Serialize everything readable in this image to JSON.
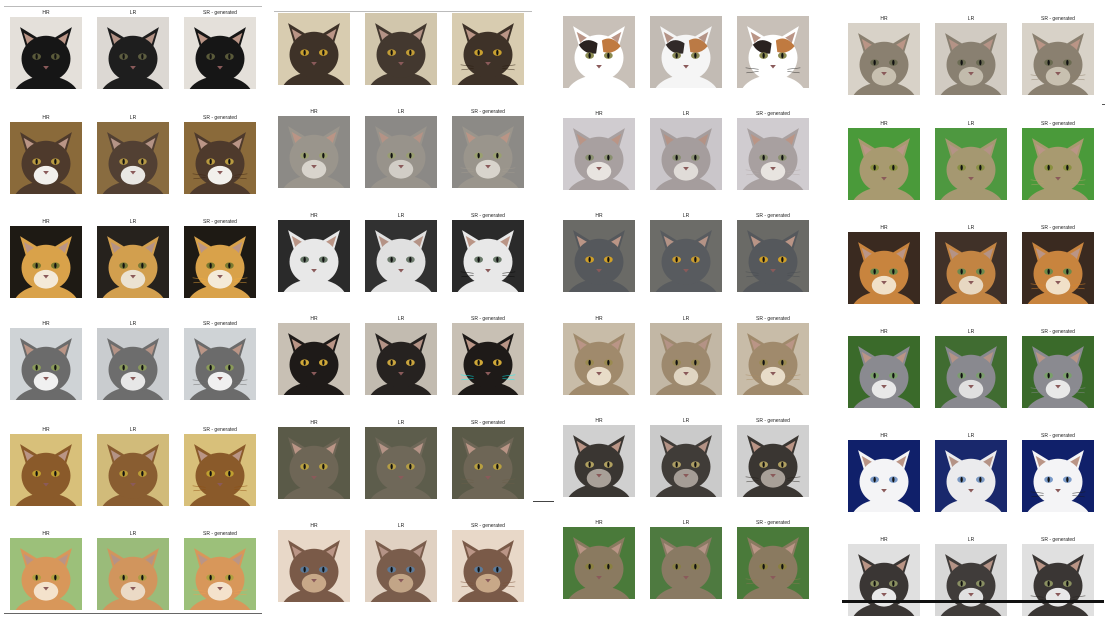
{
  "labels": {
    "hr": "HR",
    "lr": "LR",
    "sr": "SR - generated"
  },
  "panels": [
    {
      "name": "panel-1",
      "rows": [
        {
          "bg": "#e4e0da",
          "cat": "#161616",
          "eye": "#5a5a3a",
          "show_labels": true
        },
        {
          "bg": "#8a6a3a",
          "cat": "#4e3a2c",
          "eye": "#b89a40",
          "muzzle": "#f2f0ec",
          "show_labels": true
        },
        {
          "bg": "#1e1a14",
          "cat": "#d9a24a",
          "eye": "#7a7a30",
          "muzzle": "#f4ead8",
          "show_labels": true
        },
        {
          "bg": "#cfd3d6",
          "cat": "#6b6b6b",
          "eye": "#8a9a5a",
          "muzzle": "#f0f0f0",
          "show_labels": true
        },
        {
          "bg": "#d8c07a",
          "cat": "#8a5a2a",
          "eye": "#c0a030",
          "show_labels": true
        },
        {
          "bg": "#9cc07a",
          "cat": "#d8975a",
          "eye": "#b0a040",
          "muzzle": "#f4e2cc",
          "show_labels": true
        }
      ]
    },
    {
      "name": "panel-2",
      "rows": [
        {
          "bg": "#d8ccb0",
          "cat": "#3e3228",
          "eye": "#c8a030",
          "show_labels": false
        },
        {
          "bg": "#8c8a86",
          "cat": "#9a958c",
          "eye": "#9aa070",
          "muzzle": "#d8d4cc",
          "show_labels": true
        },
        {
          "bg": "#2a2a2a",
          "cat": "#e8e8e8",
          "eye": "#6a7a6a",
          "show_labels": true
        },
        {
          "bg": "#c8c0b4",
          "cat": "#1e1a18",
          "eye": "#d0a838",
          "show_labels": true
        },
        {
          "bg": "#5a5a48",
          "cat": "#6e6656",
          "eye": "#b8a040",
          "show_labels": true
        },
        {
          "bg": "#e8d8c8",
          "cat": "#7a5a48",
          "eye": "#5a7a9a",
          "muzzle": "#c8a888",
          "show_labels": true
        }
      ]
    },
    {
      "name": "panel-3",
      "rows": [
        {
          "bg": "#c8c0b8",
          "cat": "#ffffff",
          "eye": "#8a8a50",
          "patch": "#2a2220",
          "show_labels": false
        },
        {
          "bg": "#d0ccd0",
          "cat": "#a8a0a0",
          "eye": "#8a9070",
          "muzzle": "#e8e4e0",
          "show_labels": true
        },
        {
          "bg": "#6a6a66",
          "cat": "#55585c",
          "eye": "#d0a028",
          "show_labels": true
        },
        {
          "bg": "#c8bca8",
          "cat": "#a08a6c",
          "eye": "#9a8a50",
          "muzzle": "#e8dcc8",
          "show_labels": true
        },
        {
          "bg": "#d0d0d0",
          "cat": "#3a3632",
          "eye": "#b0a060",
          "muzzle": "#a8a098",
          "show_labels": true
        },
        {
          "bg": "#4a7a3a",
          "cat": "#8a7a60",
          "eye": "#8a8040",
          "show_labels": true
        }
      ]
    },
    {
      "name": "panel-4",
      "rows": [
        {
          "bg": "#d8d2c8",
          "cat": "#8a8070",
          "eye": "#6a6a50",
          "muzzle": "#c8c0b0",
          "show_labels": true
        },
        {
          "bg": "#4a9a3a",
          "cat": "#a89a70",
          "eye": "#8a9040",
          "show_labels": true
        },
        {
          "bg": "#3a2a20",
          "cat": "#c8843e",
          "eye": "#6a8a4a",
          "muzzle": "#f0e0c8",
          "show_labels": true
        },
        {
          "bg": "#3a6a2a",
          "cat": "#8a8a90",
          "eye": "#7aa06a",
          "muzzle": "#e8e8e8",
          "show_labels": true
        },
        {
          "bg": "#10206a",
          "cat": "#f4f4f6",
          "eye": "#7a9ac8",
          "show_labels": true
        },
        {
          "bg": "#e0e0e0",
          "cat": "#3a3634",
          "eye": "#8a9060",
          "muzzle": "#e8e8e8",
          "show_labels": true
        }
      ]
    }
  ]
}
